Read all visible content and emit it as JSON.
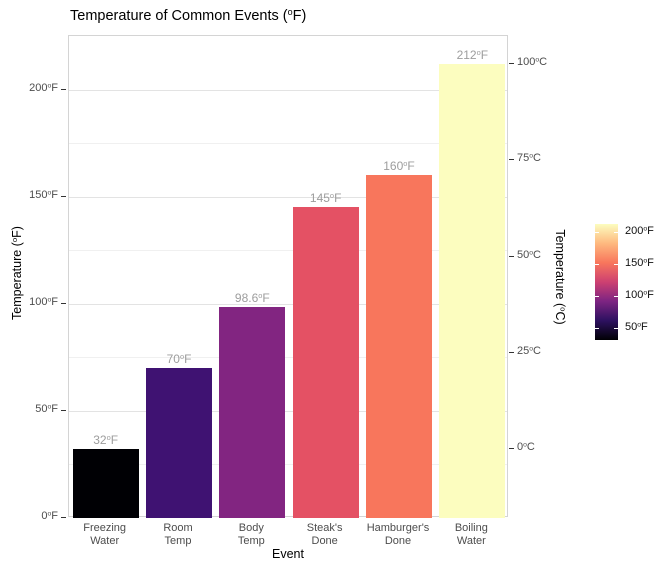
{
  "chart_data": {
    "type": "bar",
    "title": "Temperature of Common Events (°F)",
    "xlabel": "Event",
    "ylabel_left": "Temperature (°F)",
    "ylabel_right": "Temperature (°C)",
    "categories": [
      "Freezing Water",
      "Room Temp",
      "Body Temp",
      "Steak's Done",
      "Hamburger's Done",
      "Boiling Water"
    ],
    "values": [
      32,
      70,
      98.6,
      145,
      160,
      212
    ],
    "bar_labels": [
      "32°F",
      "70°F",
      "98.6°F",
      "145°F",
      "160°F",
      "212°F"
    ],
    "bar_colors": [
      "#000004",
      "#3f1272",
      "#822581",
      "#e45164",
      "#f8765c",
      "#fcfdbf"
    ],
    "ylim_f": [
      0,
      225
    ],
    "y_axis_left": {
      "tick_values": [
        0,
        50,
        100,
        150,
        200
      ],
      "tick_labels": [
        "0°F",
        "50°F",
        "100°F",
        "150°F",
        "200°F"
      ],
      "minor_tick_values": [
        25,
        75,
        125,
        175
      ]
    },
    "y_axis_right": {
      "tick_values_c": [
        0,
        25,
        50,
        75,
        100
      ],
      "tick_labels": [
        "0°C",
        "25°C",
        "50°C",
        "75°C",
        "100°C"
      ]
    },
    "grid": {
      "major": true,
      "minor": true,
      "background": "#ffffff"
    },
    "legend": {
      "position": "right",
      "range_f": [
        32,
        212
      ],
      "tick_values": [
        50,
        100,
        150,
        200
      ],
      "tick_labels": [
        "50°F",
        "100°F",
        "150°F",
        "200°F"
      ],
      "gradient_stops_bottom_to_top": [
        "#000004",
        "#2d1160",
        "#7d2482",
        "#cd4071",
        "#f8765c",
        "#feb97f",
        "#fcfdbf"
      ]
    },
    "colors": {
      "panel_border": "#d4d4d4",
      "grid_major": "#e3e3e3",
      "grid_minor": "#f0f0f0",
      "axis_text": "#4d4d4d",
      "bar_value_text": "#9d9d9d",
      "title_text": "#000000"
    }
  }
}
